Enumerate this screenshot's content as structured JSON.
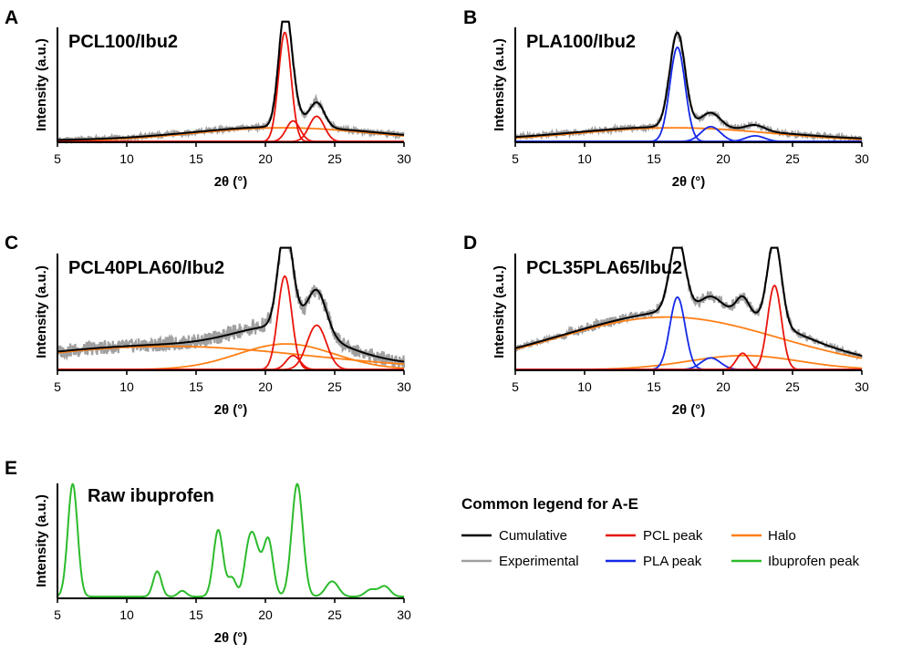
{
  "figure": {
    "legend": {
      "title": "Common legend for A-E",
      "entries": [
        {
          "label": "Cumulative",
          "color": "#000000"
        },
        {
          "label": "Experimental",
          "color": "#a0a0a0"
        },
        {
          "label": "PCL peak",
          "color": "#e8140c"
        },
        {
          "label": "PLA peak",
          "color": "#1428e6"
        },
        {
          "label": "Halo",
          "color": "#ff7f16"
        },
        {
          "label": "Ibuprofen peak",
          "color": "#2cbb2c"
        }
      ]
    }
  },
  "chart_data": [
    {
      "panel": "A",
      "type": "line",
      "title": "PCL100/Ibu2",
      "xlabel": "2θ (°)",
      "ylabel": "Intensity (a.u.)",
      "xlim": [
        5,
        30
      ],
      "xticks": [
        5,
        10,
        15,
        20,
        25,
        30
      ],
      "ylim": [
        0,
        1
      ],
      "y_ticks_shown": false,
      "components": [
        {
          "kind": "Halo",
          "center": 21.3,
          "height": 0.12,
          "width": 6.5
        },
        {
          "kind": "PCL peak",
          "center": 21.4,
          "height": 0.95,
          "width": 0.45
        },
        {
          "kind": "PCL peak",
          "center": 22.0,
          "height": 0.18,
          "width": 0.5
        },
        {
          "kind": "PCL peak",
          "center": 23.7,
          "height": 0.22,
          "width": 0.55
        }
      ]
    },
    {
      "panel": "B",
      "type": "line",
      "title": "PLA100/Ibu2",
      "xlabel": "2θ (°)",
      "ylabel": "Intensity (a.u.)",
      "xlim": [
        5,
        30
      ],
      "xticks": [
        5,
        10,
        15,
        20,
        25,
        30
      ],
      "ylim": [
        0,
        1
      ],
      "y_ticks_shown": false,
      "components": [
        {
          "kind": "Halo",
          "center": 16.5,
          "height": 0.12,
          "width": 7.0
        },
        {
          "kind": "PLA peak",
          "center": 16.7,
          "height": 0.82,
          "width": 0.55
        },
        {
          "kind": "PLA peak",
          "center": 19.1,
          "height": 0.13,
          "width": 0.7
        },
        {
          "kind": "PLA peak",
          "center": 22.3,
          "height": 0.05,
          "width": 0.7
        }
      ]
    },
    {
      "panel": "C",
      "type": "line",
      "title": "PCL40PLA60/Ibu2",
      "xlabel": "2θ (°)",
      "ylabel": "Intensity (a.u.)",
      "xlim": [
        5,
        30
      ],
      "xticks": [
        5,
        10,
        15,
        20,
        25,
        30
      ],
      "ylim": [
        0,
        1
      ],
      "y_ticks_shown": false,
      "components": [
        {
          "kind": "Halo",
          "center": 13.0,
          "height": 0.2,
          "width": 10.0
        },
        {
          "kind": "Halo",
          "center": 21.5,
          "height": 0.22,
          "width": 3.5
        },
        {
          "kind": "PCL peak",
          "center": 21.4,
          "height": 0.8,
          "width": 0.5
        },
        {
          "kind": "PCL peak",
          "center": 22.0,
          "height": 0.12,
          "width": 0.5
        },
        {
          "kind": "PCL peak",
          "center": 23.7,
          "height": 0.38,
          "width": 0.7
        }
      ]
    },
    {
      "panel": "D",
      "type": "line",
      "title": "PCL35PLA65/Ibu2",
      "xlabel": "2θ (°)",
      "ylabel": "Intensity (a.u.)",
      "xlim": [
        5,
        30
      ],
      "xticks": [
        5,
        10,
        15,
        20,
        25,
        30
      ],
      "ylim": [
        0,
        1
      ],
      "y_ticks_shown": false,
      "components": [
        {
          "kind": "Halo",
          "center": 16.0,
          "height": 0.45,
          "width": 8.0
        },
        {
          "kind": "Halo",
          "center": 21.5,
          "height": 0.12,
          "width": 4.0
        },
        {
          "kind": "PLA peak",
          "center": 16.7,
          "height": 0.62,
          "width": 0.55
        },
        {
          "kind": "PLA peak",
          "center": 19.1,
          "height": 0.1,
          "width": 0.7
        },
        {
          "kind": "PCL peak",
          "center": 21.4,
          "height": 0.14,
          "width": 0.45
        },
        {
          "kind": "PCL peak",
          "center": 23.7,
          "height": 0.72,
          "width": 0.5
        }
      ]
    },
    {
      "panel": "E",
      "type": "line",
      "title": "Raw ibuprofen",
      "xlabel": "2θ (°)",
      "ylabel": "Intensity (a.u.)",
      "xlim": [
        5,
        30
      ],
      "xticks": [
        5,
        10,
        15,
        20,
        25,
        30
      ],
      "ylim": [
        0,
        1
      ],
      "y_ticks_shown": false,
      "components": [
        {
          "kind": "Ibuprofen peak",
          "center": 6.1,
          "height": 0.98,
          "width": 0.35
        },
        {
          "kind": "Ibuprofen peak",
          "center": 12.2,
          "height": 0.22,
          "width": 0.3
        },
        {
          "kind": "Ibuprofen peak",
          "center": 14.0,
          "height": 0.05,
          "width": 0.3
        },
        {
          "kind": "Ibuprofen peak",
          "center": 16.6,
          "height": 0.58,
          "width": 0.35
        },
        {
          "kind": "Ibuprofen peak",
          "center": 17.6,
          "height": 0.16,
          "width": 0.3
        },
        {
          "kind": "Ibuprofen peak",
          "center": 18.7,
          "height": 0.3,
          "width": 0.3
        },
        {
          "kind": "Ibuprofen peak",
          "center": 19.1,
          "height": 0.35,
          "width": 0.3
        },
        {
          "kind": "Ibuprofen peak",
          "center": 19.5,
          "height": 0.2,
          "width": 0.3
        },
        {
          "kind": "Ibuprofen peak",
          "center": 20.2,
          "height": 0.5,
          "width": 0.35
        },
        {
          "kind": "Ibuprofen peak",
          "center": 22.3,
          "height": 0.98,
          "width": 0.4
        },
        {
          "kind": "Ibuprofen peak",
          "center": 24.6,
          "height": 0.07,
          "width": 0.4
        },
        {
          "kind": "Ibuprofen peak",
          "center": 25.0,
          "height": 0.08,
          "width": 0.4
        },
        {
          "kind": "Ibuprofen peak",
          "center": 27.6,
          "height": 0.06,
          "width": 0.4
        },
        {
          "kind": "Ibuprofen peak",
          "center": 28.6,
          "height": 0.09,
          "width": 0.4
        }
      ]
    }
  ]
}
